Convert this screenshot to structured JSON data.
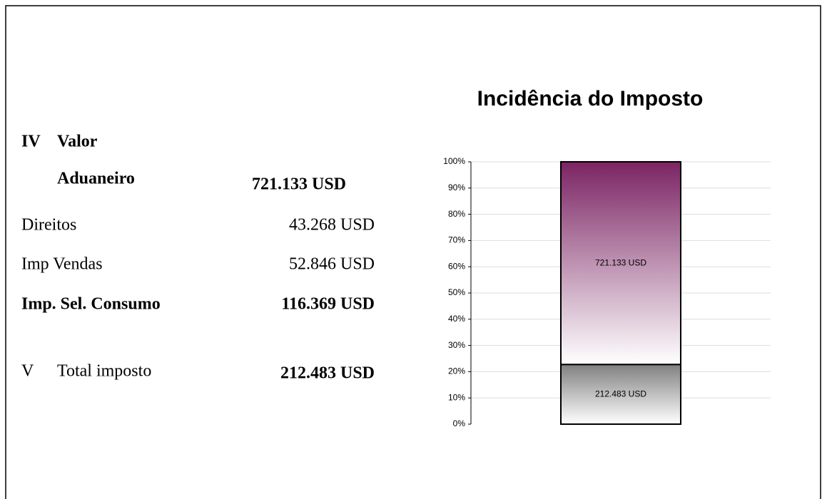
{
  "valuation": {
    "number": "IV",
    "label_line1": "Valor",
    "label_line2": "Aduaneiro",
    "amount": "721.133 USD"
  },
  "taxes": [
    {
      "label": "Direitos",
      "amount": "43.268 USD"
    },
    {
      "label": "Imp Vendas",
      "amount": "52.846 USD"
    },
    {
      "label": "Imp. Sel. Consumo",
      "amount": "116.369 USD"
    }
  ],
  "total": {
    "number": "V",
    "label": "Total imposto",
    "amount": "212.483 USD"
  },
  "chart_data": {
    "type": "bar",
    "stacking": "percent",
    "title": "Incidência do Imposto",
    "categories": [
      null
    ],
    "series": [
      {
        "color": "#808080",
        "values": [
          212483
        ],
        "value_labels": [
          "212.483 USD"
        ]
      },
      {
        "color": "#7b2463",
        "values": [
          721133
        ],
        "value_labels": [
          "721.133 USD"
        ]
      }
    ],
    "ylim": [
      0,
      100
    ],
    "yticks": [
      {
        "value": 0,
        "label": "0%"
      },
      {
        "value": 10,
        "label": "10%"
      },
      {
        "value": 20,
        "label": "20%"
      },
      {
        "value": 30,
        "label": "30%"
      },
      {
        "value": 40,
        "label": "40%"
      },
      {
        "value": 50,
        "label": "50%"
      },
      {
        "value": 60,
        "label": "60%"
      },
      {
        "value": 70,
        "label": "70%"
      },
      {
        "value": 80,
        "label": "80%"
      },
      {
        "value": 90,
        "label": "90%"
      },
      {
        "value": 100,
        "label": "100%"
      }
    ],
    "grid": true
  }
}
